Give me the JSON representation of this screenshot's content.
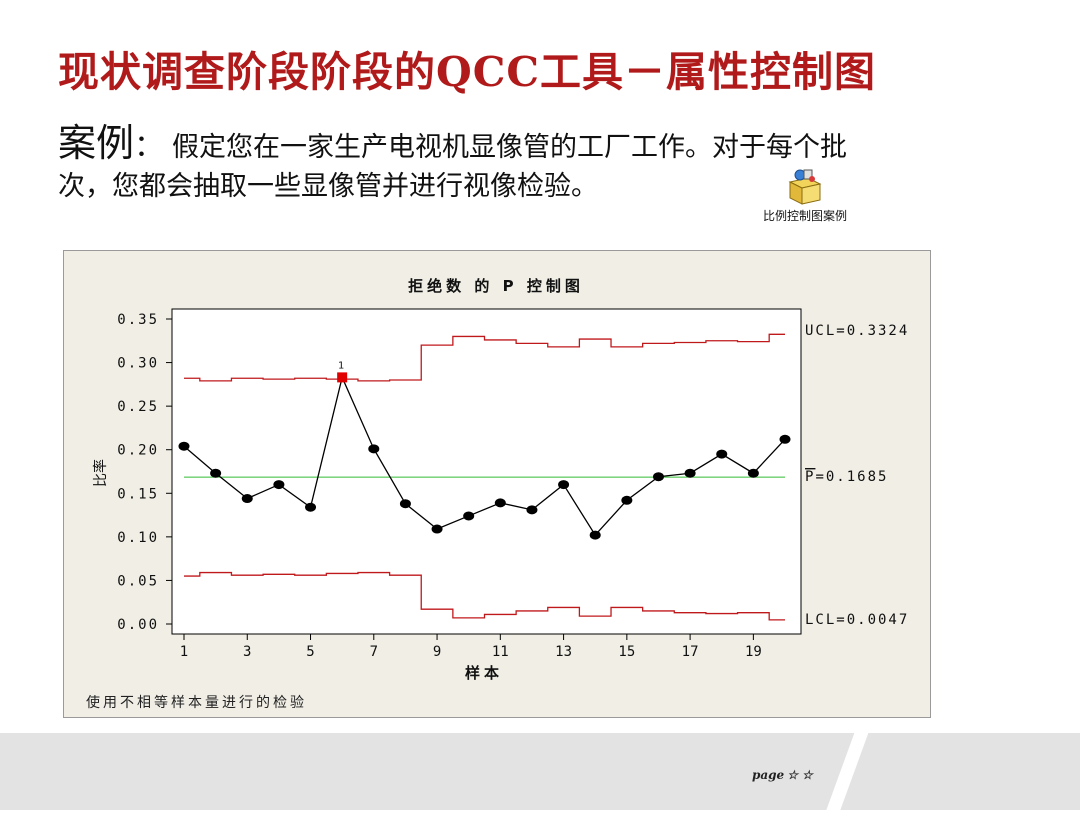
{
  "slide": {
    "title": "现状调查阶段阶段的QCC工具－属性控制图",
    "case_label": "案例",
    "case_colon": "：",
    "case_text_line1": "假定您在一家生产电视机显像管的工厂工作。对于每个批",
    "case_text_line2": "次，您都会抽取一些显像管并进行视像检验。",
    "attachment_label": "比例控制图案例",
    "page_mark": "page",
    "page_stars": "☆☆"
  },
  "colors": {
    "title": "#b01a1a",
    "chart_background": "#f0eee5",
    "control_limits": "#c0191c",
    "center_line": "#33bb33",
    "data_line": "#000000",
    "out_of_control_point": "#e00000"
  },
  "chart_data": {
    "type": "line",
    "title": "拒绝数 的 P 控制图",
    "xlabel": "样本",
    "ylabel": "比率",
    "footnote": "使用不相等样本量进行的检验",
    "x": [
      1,
      2,
      3,
      4,
      5,
      6,
      7,
      8,
      9,
      10,
      11,
      12,
      13,
      14,
      15,
      16,
      17,
      18,
      19,
      20
    ],
    "series": [
      {
        "values": [
          0.204,
          0.173,
          0.144,
          0.16,
          0.134,
          0.283,
          0.201,
          0.138,
          0.109,
          0.124,
          0.139,
          0.131,
          0.16,
          0.102,
          0.142,
          0.169,
          0.173,
          0.195,
          0.173,
          0.212
        ]
      }
    ],
    "ucl": [
      0.282,
      0.279,
      0.282,
      0.281,
      0.282,
      0.281,
      0.279,
      0.28,
      0.32,
      0.33,
      0.326,
      0.322,
      0.318,
      0.327,
      0.318,
      0.322,
      0.323,
      0.325,
      0.324,
      0.3324
    ],
    "lcl": [
      0.055,
      0.059,
      0.056,
      0.057,
      0.056,
      0.058,
      0.059,
      0.056,
      0.017,
      0.007,
      0.011,
      0.015,
      0.019,
      0.009,
      0.019,
      0.015,
      0.013,
      0.012,
      0.013,
      0.0047
    ],
    "center": 0.1685,
    "xticks": [
      1,
      3,
      5,
      7,
      9,
      11,
      13,
      15,
      17,
      19
    ],
    "yticks": [
      0.0,
      0.05,
      0.1,
      0.15,
      0.2,
      0.25,
      0.3,
      0.35
    ],
    "ytick_labels": [
      "0.00",
      "0.05",
      "0.10",
      "0.15",
      "0.20",
      "0.25",
      "0.30",
      "0.35"
    ],
    "ylim": [
      0.0,
      0.35
    ],
    "xlim": [
      1,
      20
    ],
    "out_of_control": [
      {
        "x": 6,
        "label": "1"
      }
    ],
    "right_labels": {
      "ucl": "UCL=0.3324",
      "center_symbol": "P",
      "center_value": "=0.1685",
      "lcl": "LCL=0.0047"
    },
    "grid": false
  }
}
